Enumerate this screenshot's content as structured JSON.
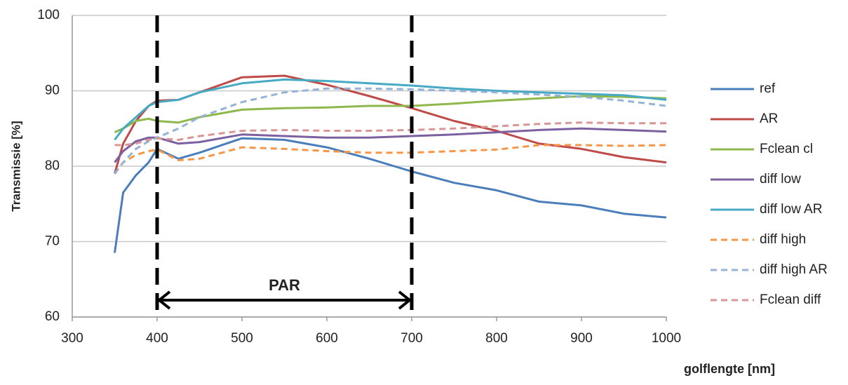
{
  "chart_data": {
    "type": "line",
    "ylabel": "Transmissie [%]",
    "xlabel": "golflengte [nm]",
    "x": [
      350,
      360,
      375,
      390,
      400,
      425,
      450,
      500,
      550,
      600,
      650,
      700,
      750,
      800,
      850,
      900,
      950,
      1000
    ],
    "xlim": [
      300,
      1000
    ],
    "xticks": [
      300,
      400,
      500,
      600,
      700,
      800,
      900,
      1000
    ],
    "ylim": [
      60,
      100
    ],
    "yticks": [
      60,
      70,
      80,
      90,
      100
    ],
    "grid": true,
    "legend": "right",
    "span": {
      "label": "PAR",
      "from": 400,
      "to": 700
    },
    "series": [
      {
        "name": "ref",
        "color": "#4a7ebb",
        "dashed": false,
        "values": [
          68.5,
          76.5,
          78.8,
          80.5,
          82.3,
          81,
          81.8,
          83.7,
          83.5,
          82.5,
          81,
          79.3,
          77.8,
          76.8,
          75.3,
          74.8,
          73.7,
          73.2
        ]
      },
      {
        "name": "AR",
        "color": "#be4b48",
        "dashed": false,
        "values": [
          79,
          83,
          86,
          88,
          88.7,
          88.8,
          89.8,
          91.8,
          92,
          90.8,
          89.3,
          87.7,
          86,
          84.7,
          83,
          82.3,
          81.2,
          80.5
        ]
      },
      {
        "name": "Fclean cl",
        "color": "#8fb84c",
        "dashed": false,
        "values": [
          84.5,
          85,
          86,
          86.3,
          86,
          85.8,
          86.5,
          87.5,
          87.7,
          87.8,
          88,
          88,
          88.3,
          88.7,
          89,
          89.3,
          89.2,
          89
        ]
      },
      {
        "name": "diff low",
        "color": "#7d60a0",
        "dashed": false,
        "values": [
          80.5,
          82,
          83.3,
          83.8,
          83.8,
          83,
          83.2,
          84.2,
          84,
          83.8,
          83.8,
          84,
          84.2,
          84.5,
          84.8,
          85,
          84.8,
          84.6
        ]
      },
      {
        "name": "diff low AR",
        "color": "#46aac5",
        "dashed": false,
        "values": [
          83.5,
          85,
          86.5,
          88,
          88.5,
          88.8,
          89.8,
          91,
          91.5,
          91.3,
          91,
          90.7,
          90.3,
          90,
          89.8,
          89.6,
          89.4,
          88.8
        ]
      },
      {
        "name": "diff high",
        "color": "#f79646",
        "dashed": true,
        "values": [
          79,
          80.5,
          81.5,
          82,
          82.2,
          80.8,
          81,
          82.5,
          82.3,
          82,
          81.8,
          81.8,
          82,
          82.2,
          82.8,
          82.8,
          82.7,
          82.8
        ]
      },
      {
        "name": "diff high AR",
        "color": "#95b3d7",
        "dashed": true,
        "values": [
          79,
          80.5,
          82.3,
          83.3,
          83.8,
          85,
          86.5,
          88.5,
          89.8,
          90.3,
          90.3,
          90.2,
          90,
          89.8,
          89.5,
          89.2,
          88.7,
          88
        ]
      },
      {
        "name": "Fclean diff",
        "color": "#d99694",
        "dashed": true,
        "values": [
          82.8,
          82.8,
          83,
          83.5,
          83.7,
          83.5,
          84,
          84.7,
          84.8,
          84.7,
          84.7,
          84.8,
          85,
          85.3,
          85.6,
          85.8,
          85.7,
          85.7
        ]
      }
    ]
  }
}
